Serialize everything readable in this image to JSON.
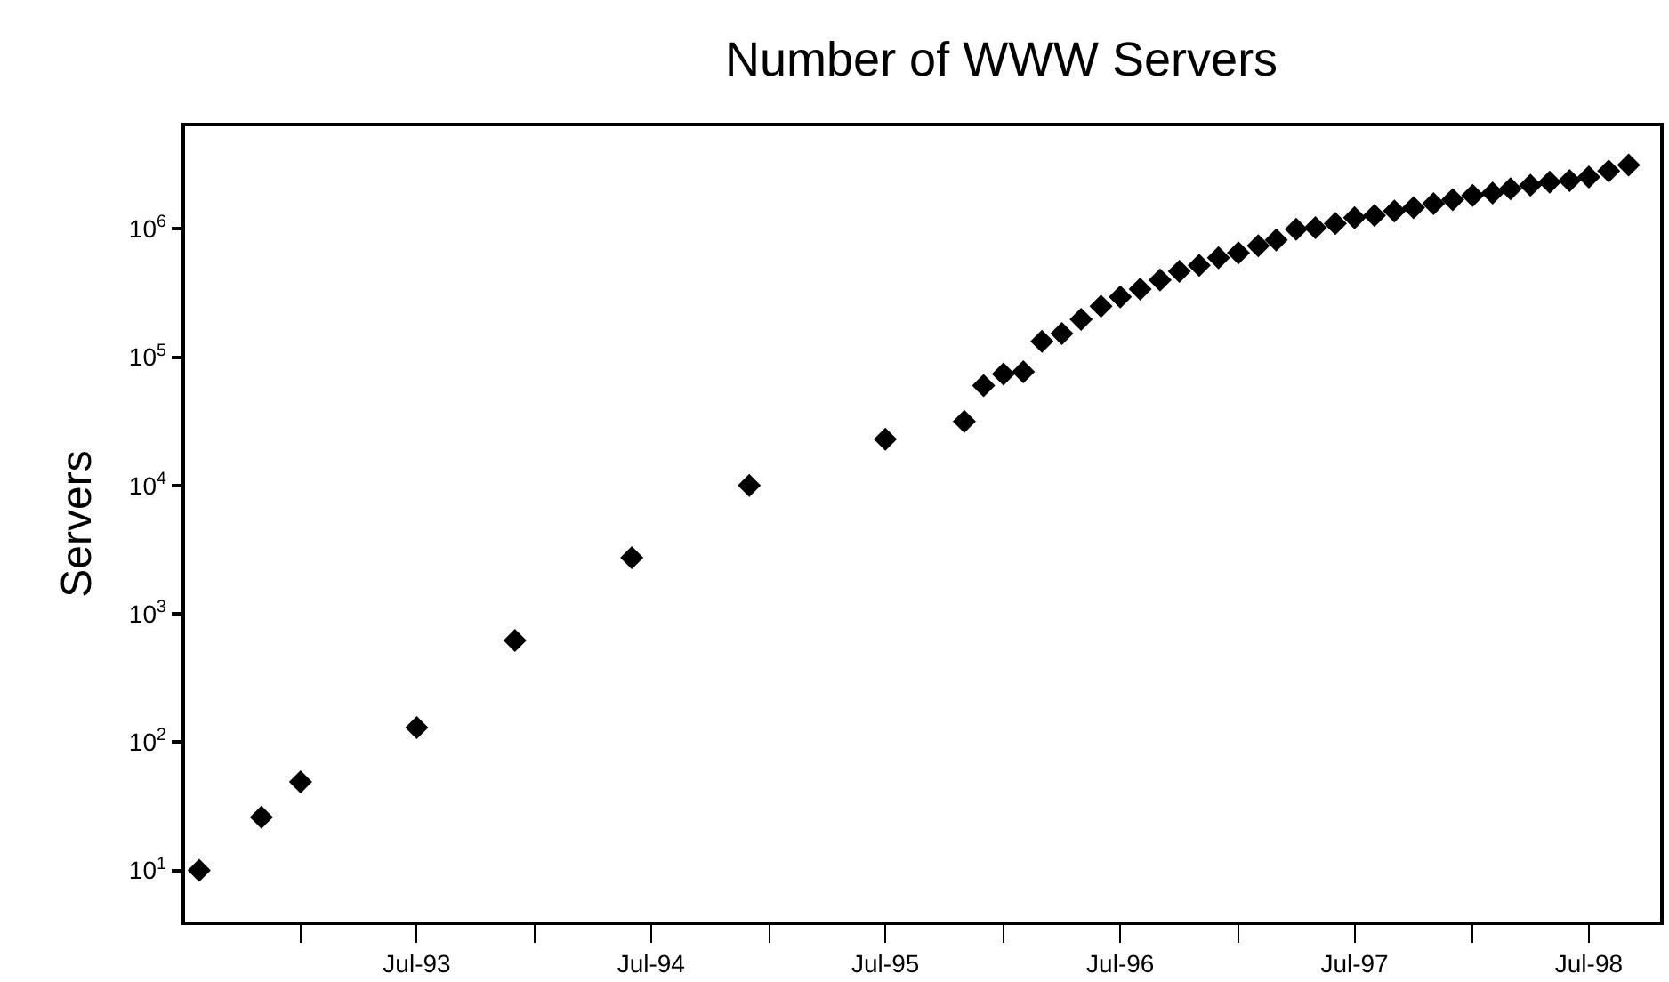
{
  "chart_data": {
    "type": "scatter",
    "title": "Number of WWW Servers",
    "ylabel": "Servers",
    "log": "y",
    "marker": "diamond",
    "grid": false,
    "x": [
      "1992-07-27",
      "1992-11",
      "1993-01",
      "1993-07",
      "1993-12",
      "1994-06",
      "1994-12",
      "1995-07",
      "1995-11",
      "1995-12",
      "1996-01",
      "1996-02",
      "1996-03",
      "1996-04",
      "1996-05",
      "1996-06",
      "1996-07",
      "1996-08",
      "1996-09",
      "1996-10",
      "1996-11",
      "1996-12",
      "1997-01",
      "1997-02",
      "1997-03",
      "1997-04",
      "1997-05",
      "1997-06",
      "1997-07",
      "1997-08",
      "1997-09",
      "1997-10",
      "1997-11",
      "1997-12",
      "1998-01",
      "1998-02",
      "1998-03",
      "1998-04",
      "1998-05",
      "1998-06",
      "1998-07",
      "1998-08",
      "1998-09"
    ],
    "series": [
      {
        "color": "#000000",
        "values": [
          10,
          26,
          49,
          130,
          620,
          2740,
          10000,
          23000,
          31600,
          60000,
          74000,
          77000,
          133000,
          153000,
          197000,
          250000,
          295000,
          340000,
          400000,
          468000,
          520000,
          596000,
          650000,
          738000,
          820000,
          993000,
          1020000,
          1100000,
          1220000,
          1270000,
          1380000,
          1460000,
          1570000,
          1690000,
          1820000,
          1900000,
          2050000,
          2190000,
          2310000,
          2380000,
          2540000,
          2820000,
          3140000
        ]
      }
    ],
    "xlim": [
      "1992-07-05",
      "1998-10-20"
    ],
    "xticks": [
      {
        "value": "1993-01-01",
        "label": null
      },
      {
        "value": "1993-07-01",
        "label": "Jul-93"
      },
      {
        "value": "1994-01-01",
        "label": null
      },
      {
        "value": "1994-07-01",
        "label": "Jul-94"
      },
      {
        "value": "1995-01-01",
        "label": null
      },
      {
        "value": "1995-07-01",
        "label": "Jul-95"
      },
      {
        "value": "1996-01-01",
        "label": null
      },
      {
        "value": "1996-07-01",
        "label": "Jul-96"
      },
      {
        "value": "1997-01-01",
        "label": null
      },
      {
        "value": "1997-07-01",
        "label": "Jul-97"
      },
      {
        "value": "1998-01-01",
        "label": null
      },
      {
        "value": "1998-07-01",
        "label": "Jul-98"
      }
    ],
    "ylim": [
      4,
      6300000
    ],
    "yticks": [
      {
        "value": 10,
        "label": "10$^{1}$"
      },
      {
        "value": 100,
        "label": "10$^{2}$"
      },
      {
        "value": 1000,
        "label": "10$^{3}$"
      },
      {
        "value": 10000,
        "label": "10$^{4}$"
      },
      {
        "value": 100000,
        "label": "10$^{5}$"
      },
      {
        "value": 1000000,
        "label": "10$^{6}$"
      }
    ]
  }
}
